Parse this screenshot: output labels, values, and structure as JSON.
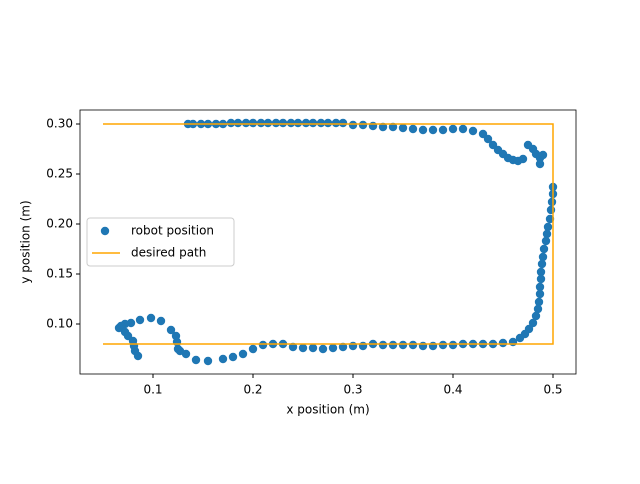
{
  "chart_data": {
    "type": "scatter",
    "x_label": "x position (m)",
    "y_label": "y position (m)",
    "xlim": [
      0.027,
      0.523
    ],
    "ylim": [
      0.05,
      0.314
    ],
    "xticks": [
      0.1,
      0.2,
      0.3,
      0.4,
      0.5
    ],
    "yticks": [
      {
        "value": 0.1,
        "label": "0.10"
      },
      0.15,
      {
        "value": 0.2,
        "label": "0.20"
      },
      0.25,
      {
        "value": 0.3,
        "label": "0.30"
      }
    ],
    "legend": "center left",
    "series": [
      {
        "name": "robot position",
        "type": "scatter",
        "color": "#1f77b4",
        "x": [
          0.135,
          0.14,
          0.148,
          0.155,
          0.163,
          0.17,
          0.178,
          0.185,
          0.193,
          0.2,
          0.208,
          0.215,
          0.223,
          0.23,
          0.238,
          0.245,
          0.253,
          0.26,
          0.268,
          0.275,
          0.283,
          0.29,
          0.3,
          0.31,
          0.32,
          0.33,
          0.34,
          0.35,
          0.36,
          0.37,
          0.38,
          0.39,
          0.4,
          0.41,
          0.42,
          0.43,
          0.435,
          0.44,
          0.445,
          0.45,
          0.455,
          0.46,
          0.465,
          0.47,
          0.475,
          0.48,
          0.483,
          0.487,
          0.487,
          0.49,
          0.5,
          0.5,
          0.499,
          0.498,
          0.497,
          0.495,
          0.494,
          0.493,
          0.491,
          0.49,
          0.489,
          0.488,
          0.488,
          0.487,
          0.487,
          0.486,
          0.485,
          0.483,
          0.48,
          0.476,
          0.472,
          0.467,
          0.46,
          0.45,
          0.44,
          0.43,
          0.42,
          0.41,
          0.4,
          0.39,
          0.38,
          0.37,
          0.36,
          0.35,
          0.34,
          0.33,
          0.32,
          0.31,
          0.3,
          0.29,
          0.28,
          0.27,
          0.26,
          0.25,
          0.24,
          0.23,
          0.22,
          0.21,
          0.2,
          0.19,
          0.18,
          0.17,
          0.155,
          0.143,
          0.133,
          0.127,
          0.125,
          0.124,
          0.123,
          0.118,
          0.108,
          0.098,
          0.087,
          0.078,
          0.072,
          0.068,
          0.066,
          0.072,
          0.075,
          0.08,
          0.081,
          0.082,
          0.085
        ],
        "y": [
          0.3,
          0.3,
          0.3,
          0.3,
          0.3,
          0.3,
          0.301,
          0.301,
          0.301,
          0.301,
          0.301,
          0.301,
          0.301,
          0.301,
          0.301,
          0.301,
          0.301,
          0.301,
          0.301,
          0.301,
          0.301,
          0.301,
          0.299,
          0.299,
          0.298,
          0.297,
          0.297,
          0.296,
          0.295,
          0.294,
          0.294,
          0.294,
          0.295,
          0.295,
          0.293,
          0.29,
          0.285,
          0.279,
          0.274,
          0.27,
          0.266,
          0.264,
          0.263,
          0.265,
          0.279,
          0.275,
          0.27,
          0.266,
          0.26,
          0.269,
          0.237,
          0.23,
          0.222,
          0.214,
          0.205,
          0.197,
          0.19,
          0.183,
          0.175,
          0.167,
          0.16,
          0.152,
          0.145,
          0.137,
          0.13,
          0.122,
          0.115,
          0.108,
          0.101,
          0.095,
          0.09,
          0.086,
          0.082,
          0.081,
          0.08,
          0.08,
          0.08,
          0.08,
          0.079,
          0.079,
          0.078,
          0.078,
          0.079,
          0.079,
          0.079,
          0.079,
          0.08,
          0.078,
          0.078,
          0.077,
          0.076,
          0.075,
          0.076,
          0.076,
          0.077,
          0.08,
          0.08,
          0.079,
          0.075,
          0.07,
          0.067,
          0.065,
          0.063,
          0.064,
          0.07,
          0.073,
          0.075,
          0.082,
          0.088,
          0.094,
          0.103,
          0.106,
          0.104,
          0.101,
          0.1,
          0.098,
          0.096,
          0.092,
          0.088,
          0.083,
          0.078,
          0.073,
          0.068
        ]
      },
      {
        "name": "desired path",
        "type": "line",
        "color": "#ffa500",
        "x": [
          0.05,
          0.5,
          0.5,
          0.05
        ],
        "y": [
          0.3,
          0.3,
          0.08,
          0.08
        ]
      }
    ]
  }
}
